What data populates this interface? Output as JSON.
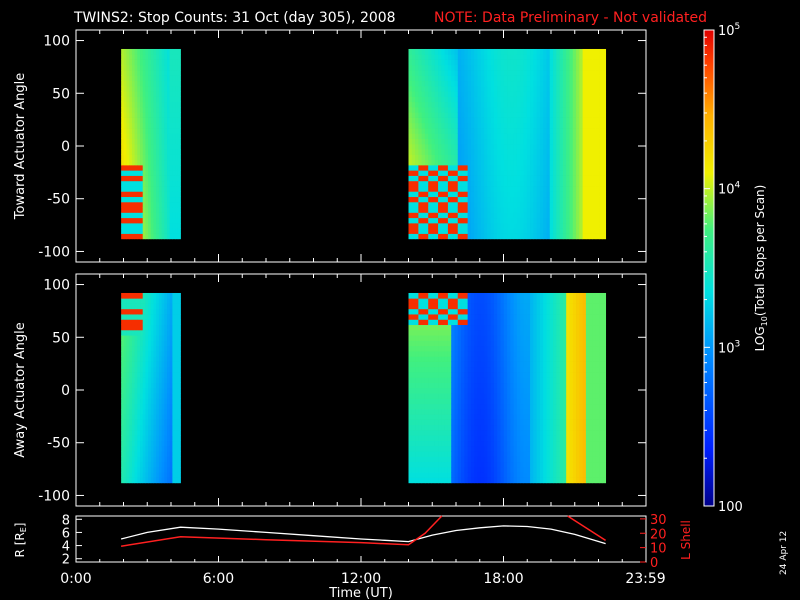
{
  "title": "TWINS2: Stop Counts: 31 Oct (day 305), 2008",
  "note": "NOTE: Data Preliminary - Not validated",
  "date_stamp": "24 Apr 12",
  "chart_data": [
    {
      "type": "heatmap",
      "name": "toward",
      "ylabel": "Toward Actuator Angle",
      "ylim": [
        -110,
        110
      ],
      "yticks": [
        "100",
        "50",
        "0",
        "-50",
        "-100"
      ],
      "ytick_values": [
        100,
        50,
        0,
        -50,
        -100
      ],
      "x_hours_range": [
        0,
        24
      ],
      "segments_hours": [
        [
          1.9,
          4.4
        ],
        [
          14.0,
          22.3
        ]
      ],
      "angle_range": [
        -88,
        92
      ]
    },
    {
      "type": "heatmap",
      "name": "away",
      "ylabel": "Away Actuator Angle",
      "ylim": [
        -110,
        110
      ],
      "yticks": [
        "100",
        "50",
        "0",
        "-50",
        "-100"
      ],
      "ytick_values": [
        100,
        50,
        0,
        -50,
        -100
      ],
      "x_hours_range": [
        0,
        24
      ],
      "segments_hours": [
        [
          1.9,
          4.4
        ],
        [
          14.0,
          22.3
        ]
      ],
      "angle_range": [
        -88,
        92
      ]
    },
    {
      "type": "line",
      "name": "orbit",
      "ylabel_left": "R [RE]",
      "ylabel_right": "L Shell",
      "xlabel": "Time (UT)",
      "xticks": [
        "0:00",
        "6:00",
        "12:00",
        "18:00",
        "23:59"
      ],
      "xtick_hours": [
        0,
        6,
        12,
        18,
        23.98
      ],
      "yticks_left": [
        "8",
        "6",
        "4",
        "2"
      ],
      "ytick_left_values": [
        8,
        6,
        4,
        2
      ],
      "ylim_left": [
        1.5,
        8.5
      ],
      "yticks_right": [
        "30",
        "20",
        "10",
        "0"
      ],
      "ytick_right_values": [
        30,
        20,
        10,
        0
      ],
      "ylim_right": [
        0,
        32
      ],
      "series": [
        {
          "name": "R",
          "color": "#ffffff",
          "x": [
            1.9,
            3.0,
            4.4,
            6.0,
            8.0,
            10.0,
            12.0,
            13.0,
            14.0,
            15.0,
            16.0,
            17.0,
            18.0,
            19.0,
            20.0,
            21.0,
            22.3
          ],
          "values": [
            5.0,
            6.0,
            6.8,
            6.5,
            6.0,
            5.5,
            5.0,
            4.8,
            4.6,
            5.6,
            6.3,
            6.7,
            7.0,
            6.9,
            6.5,
            5.7,
            4.3
          ]
        },
        {
          "name": "L Shell",
          "color": "#ff2020",
          "x": [
            1.9,
            4.4,
            8.0,
            12.0,
            14.0,
            14.7,
            15.4
          ],
          "values": [
            11,
            17.5,
            15.5,
            13.5,
            12.0,
            20,
            32
          ],
          "x2": [
            20.7,
            22.3
          ],
          "values2": [
            32,
            15
          ]
        }
      ]
    },
    {
      "type": "colorbar",
      "name": "colorbar",
      "label": "LOG10(Total Stops per Scan)",
      "label_main": "LOG",
      "label_sub": "10",
      "label_rest": "(Total Stops per Scan)",
      "ticks": [
        {
          "base": "10",
          "exp": "5",
          "value": 100000
        },
        {
          "base": "10",
          "exp": "4",
          "value": 10000
        },
        {
          "base": "10",
          "exp": "3",
          "value": 1000
        },
        {
          "base": "100",
          "exp": "",
          "value": 100
        }
      ],
      "range_log": [
        2,
        5
      ]
    }
  ]
}
